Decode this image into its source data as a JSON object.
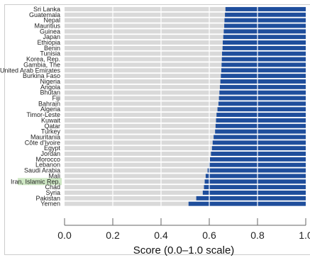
{
  "chart_data": {
    "type": "bar",
    "orientation": "horizontal",
    "stacked": true,
    "xlabel": "Score (0.0–1.0 scale)",
    "xlim": [
      0,
      1
    ],
    "xticks": [
      "0.0",
      "0.2",
      "0.4",
      "0.6",
      "0.8",
      "1.0"
    ],
    "grid": true,
    "highlighted_category": "Iran, Islamic Rep.",
    "colors": {
      "score": "#1f4e9c",
      "gap": "#d9d9d9",
      "highlight": "#cfe8c5",
      "grid": "#ffffff"
    },
    "categories": [
      "Sri Lanka",
      "Guatemala",
      "Nepal",
      "Mauritius",
      "Guinea",
      "Japan",
      "Ethiopia",
      "Benin",
      "Tunisia",
      "Korea, Rep.",
      "Gambia, The",
      "United Arab Emirates",
      "Burkina Faso",
      "Nigeria",
      "Angola",
      "Bhutan",
      "Fiji",
      "Bahrain",
      "Algeria",
      "Timor-Leste",
      "Kuwait",
      "Qatar",
      "Turkey",
      "Mauritania",
      "Côte d'Ivoire",
      "Egypt",
      "Jordan",
      "Morocco",
      "Lebanon",
      "Saudi Arabia",
      "Mali",
      "Iran, Islamic Rep.",
      "Chad",
      "Syria",
      "Pakistan",
      "Yemen"
    ],
    "values": [
      0.667,
      0.665,
      0.663,
      0.662,
      0.66,
      0.658,
      0.656,
      0.655,
      0.653,
      0.652,
      0.651,
      0.65,
      0.648,
      0.646,
      0.644,
      0.642,
      0.64,
      0.638,
      0.634,
      0.63,
      0.628,
      0.626,
      0.624,
      0.618,
      0.614,
      0.611,
      0.607,
      0.603,
      0.598,
      0.593,
      0.585,
      0.581,
      0.578,
      0.573,
      0.546,
      0.514
    ]
  }
}
